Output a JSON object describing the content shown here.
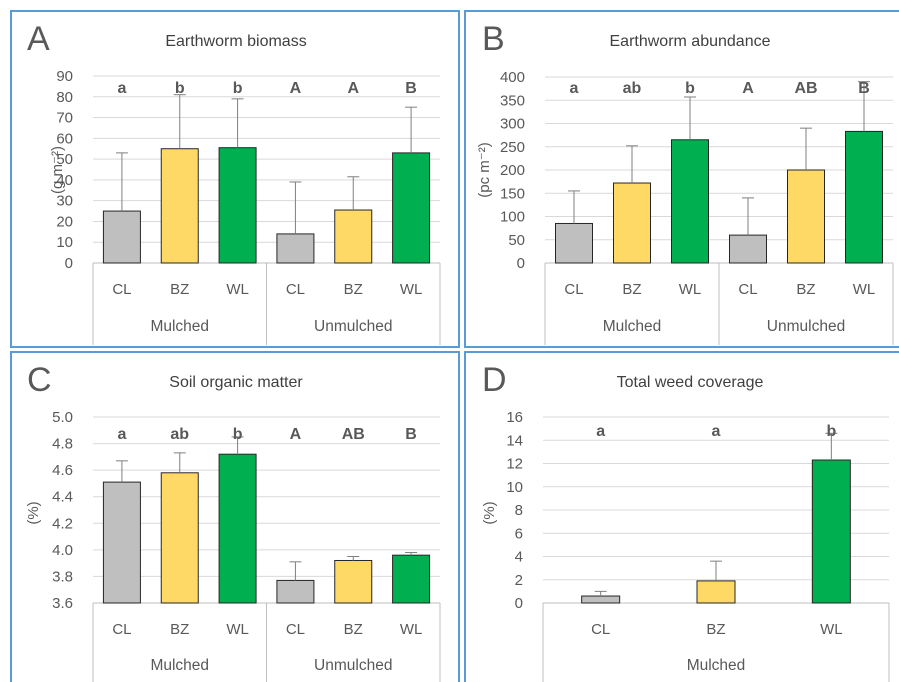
{
  "colors": {
    "CL": "#bfbfbf",
    "BZ": "#ffd966",
    "WL": "#00b050"
  },
  "chart_data": [
    {
      "type": "bar",
      "panel_letter": "A",
      "title": "Earthworm biomass",
      "ylabel": "(g m⁻²)",
      "ylim": [
        0,
        90
      ],
      "yticks": [
        0,
        10,
        20,
        30,
        40,
        50,
        60,
        70,
        80,
        90
      ],
      "ytick_labels": [
        "0",
        "10",
        "20",
        "30",
        "40",
        "50",
        "60",
        "70",
        "80",
        "90"
      ],
      "categories": [
        "CL",
        "BZ",
        "WL",
        "CL",
        "BZ",
        "WL"
      ],
      "groups": [
        {
          "label": "Mulched",
          "span": [
            0,
            2
          ]
        },
        {
          "label": "Unmulched",
          "span": [
            3,
            5
          ]
        }
      ],
      "values": [
        25,
        55,
        55.5,
        14,
        25.5,
        53
      ],
      "errors": [
        28,
        26,
        23.5,
        25,
        16,
        22
      ],
      "significance": [
        "a",
        "b",
        "b",
        "A",
        "A",
        "B"
      ],
      "grid": true,
      "legend": "none"
    },
    {
      "type": "bar",
      "panel_letter": "B",
      "title": "Earthworm abundance",
      "ylabel": "(pc m⁻²)",
      "ylim": [
        0,
        400
      ],
      "yticks": [
        0,
        50,
        100,
        150,
        200,
        250,
        300,
        350,
        400
      ],
      "ytick_labels": [
        "0",
        "50",
        "100",
        "150",
        "200",
        "250",
        "300",
        "350",
        "400"
      ],
      "categories": [
        "CL",
        "BZ",
        "WL",
        "CL",
        "BZ",
        "WL"
      ],
      "groups": [
        {
          "label": "Mulched",
          "span": [
            0,
            2
          ]
        },
        {
          "label": "Unmulched",
          "span": [
            3,
            5
          ]
        }
      ],
      "values": [
        85,
        172,
        265,
        60,
        200,
        283
      ],
      "errors": [
        70,
        80,
        92,
        80,
        90,
        107
      ],
      "significance": [
        "a",
        "ab",
        "b",
        "A",
        "AB",
        "B"
      ],
      "grid": true,
      "legend": "none"
    },
    {
      "type": "bar",
      "panel_letter": "C",
      "title": "Soil organic matter",
      "ylabel": "(%)",
      "ylim": [
        3.6,
        5.0
      ],
      "yticks": [
        3.6,
        3.8,
        4.0,
        4.2,
        4.4,
        4.6,
        4.8,
        5.0
      ],
      "ytick_labels": [
        "3.6",
        "3.8",
        "4.0",
        "4.2",
        "4.4",
        "4.6",
        "4.8",
        "5.0"
      ],
      "categories": [
        "CL",
        "BZ",
        "WL",
        "CL",
        "BZ",
        "WL"
      ],
      "groups": [
        {
          "label": "Mulched",
          "span": [
            0,
            2
          ]
        },
        {
          "label": "Unmulched",
          "span": [
            3,
            5
          ]
        }
      ],
      "values": [
        4.51,
        4.58,
        4.72,
        3.77,
        3.92,
        3.96
      ],
      "errors": [
        0.16,
        0.15,
        0.13,
        0.14,
        0.03,
        0.02
      ],
      "significance": [
        "a",
        "ab",
        "b",
        "A",
        "AB",
        "B"
      ],
      "grid": true,
      "legend": "none"
    },
    {
      "type": "bar",
      "panel_letter": "D",
      "title": "Total weed coverage",
      "ylabel": "(%)",
      "ylim": [
        0,
        16
      ],
      "yticks": [
        0,
        2,
        4,
        6,
        8,
        10,
        12,
        14,
        16
      ],
      "ytick_labels": [
        "0",
        "2",
        "4",
        "6",
        "8",
        "10",
        "12",
        "14",
        "16"
      ],
      "categories": [
        "CL",
        "BZ",
        "WL"
      ],
      "groups": [
        {
          "label": "Mulched",
          "span": [
            0,
            2
          ]
        }
      ],
      "values": [
        0.6,
        1.9,
        12.3
      ],
      "errors": [
        0.4,
        1.7,
        2.3
      ],
      "significance": [
        "a",
        "a",
        "b"
      ],
      "grid": true,
      "legend": "none"
    }
  ]
}
